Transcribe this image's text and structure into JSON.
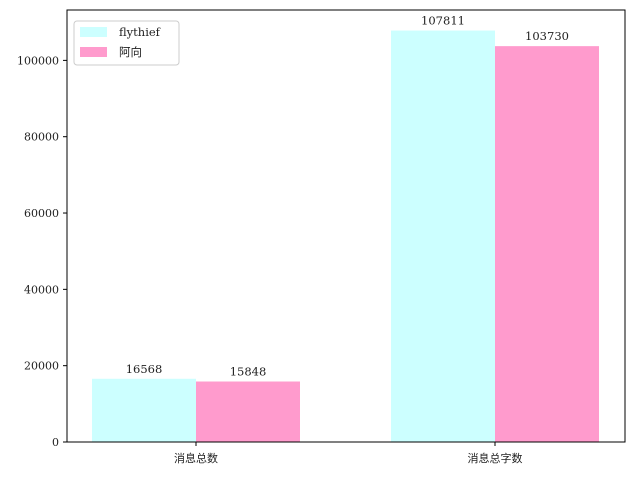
{
  "chart_data": {
    "type": "bar",
    "categories": [
      "消息总数",
      "消息总字数"
    ],
    "series": [
      {
        "name": "flythief",
        "values": [
          16568,
          107811
        ],
        "color": "#ccffff"
      },
      {
        "name": "阿向",
        "values": [
          15848,
          103730
        ],
        "color": "#ff9bcd"
      }
    ],
    "yticks": [
      0,
      20000,
      40000,
      60000,
      80000,
      100000
    ],
    "ylim": [
      0,
      113200
    ],
    "title": "",
    "xlabel": "",
    "ylabel": "",
    "legend_position": "top-left",
    "grid": false
  }
}
